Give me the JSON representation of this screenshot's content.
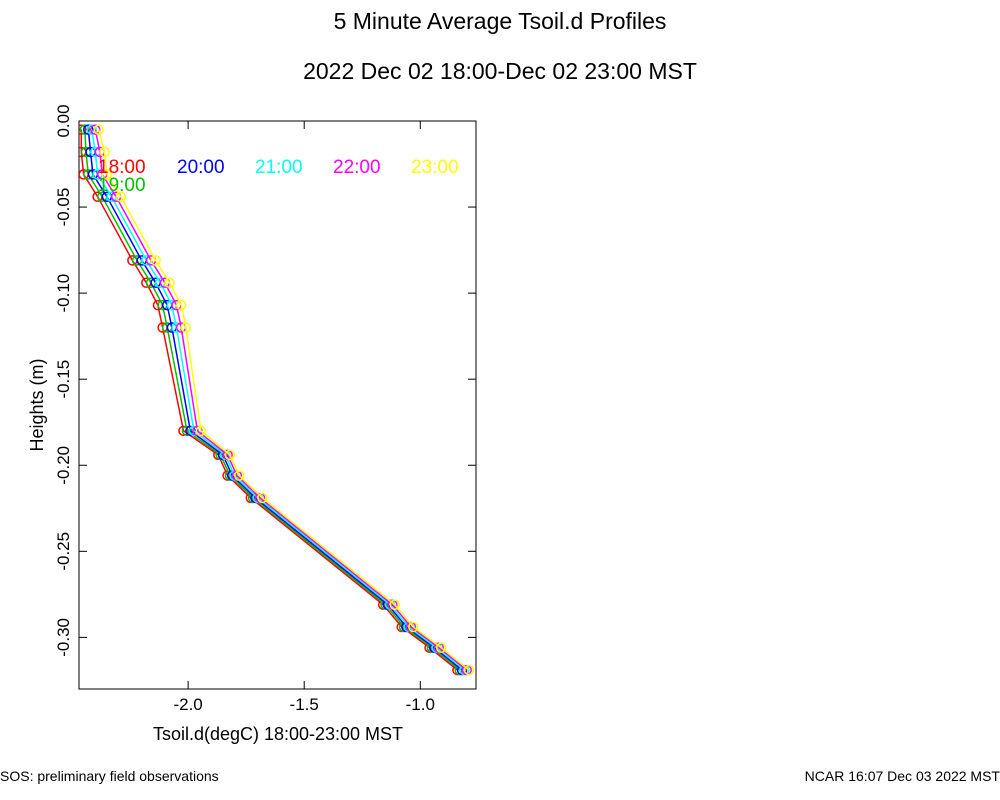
{
  "chart_data": {
    "type": "line",
    "title": "5 Minute Average Tsoil.d Profiles",
    "subtitle": "2022 Dec 02 18:00-Dec 02 23:00 MST",
    "xlabel": "Tsoil.d(degC) 18:00-23:00 MST",
    "ylabel": "Heights (m)",
    "xlim": [
      -2.47,
      -0.76
    ],
    "ylim": [
      -0.33,
      0.0
    ],
    "x_ticks": [
      -2.0,
      -1.5,
      -1.0
    ],
    "x_tick_labels": [
      "-2.0",
      "-1.5",
      "-1.0"
    ],
    "y_ticks": [
      0.0,
      -0.05,
      -0.1,
      -0.15,
      -0.2,
      -0.25,
      -0.3
    ],
    "y_tick_labels": [
      "0.00",
      "-0.05",
      "-0.10",
      "-0.15",
      "-0.20",
      "-0.25",
      "-0.30"
    ],
    "heights": [
      -0.005,
      -0.018,
      -0.031,
      -0.044,
      -0.081,
      -0.094,
      -0.107,
      -0.12,
      -0.18,
      -0.194,
      -0.206,
      -0.219,
      -0.281,
      -0.294,
      -0.306,
      -0.319
    ],
    "series": [
      {
        "name": "18:00",
        "color": "#ff0000",
        "values": [
          -2.46,
          -2.46,
          -2.45,
          -2.39,
          -2.24,
          -2.18,
          -2.13,
          -2.11,
          -2.02,
          -1.87,
          -1.83,
          -1.73,
          -1.16,
          -1.08,
          -0.96,
          -0.84
        ]
      },
      {
        "name": "19:00",
        "color": "#00c000",
        "values": [
          -2.445,
          -2.44,
          -2.43,
          -2.37,
          -2.22,
          -2.16,
          -2.11,
          -2.09,
          -2.005,
          -1.86,
          -1.82,
          -1.72,
          -1.15,
          -1.07,
          -0.95,
          -0.83
        ]
      },
      {
        "name": "20:00",
        "color": "#0000ff",
        "values": [
          -2.43,
          -2.42,
          -2.41,
          -2.35,
          -2.2,
          -2.14,
          -2.09,
          -2.07,
          -1.99,
          -1.85,
          -1.81,
          -1.71,
          -1.14,
          -1.06,
          -0.94,
          -0.82
        ]
      },
      {
        "name": "21:00",
        "color": "#00ffff",
        "values": [
          -2.415,
          -2.4,
          -2.39,
          -2.33,
          -2.18,
          -2.12,
          -2.07,
          -2.05,
          -1.975,
          -1.84,
          -1.8,
          -1.7,
          -1.13,
          -1.05,
          -0.93,
          -0.81
        ]
      },
      {
        "name": "22:00",
        "color": "#ff00ff",
        "values": [
          -2.4,
          -2.38,
          -2.37,
          -2.31,
          -2.16,
          -2.1,
          -2.05,
          -2.03,
          -1.96,
          -1.83,
          -1.79,
          -1.69,
          -1.12,
          -1.04,
          -0.92,
          -0.8
        ]
      },
      {
        "name": "23:00",
        "color": "#ffff00",
        "values": [
          -2.385,
          -2.36,
          -2.35,
          -2.29,
          -2.14,
          -2.08,
          -2.03,
          -2.01,
          -1.945,
          -1.82,
          -1.78,
          -1.68,
          -1.11,
          -1.03,
          -0.91,
          -0.79
        ]
      }
    ]
  },
  "footer": {
    "left": "SOS: preliminary field observations",
    "right": "NCAR 16:07 Dec 03 2022 MST"
  }
}
